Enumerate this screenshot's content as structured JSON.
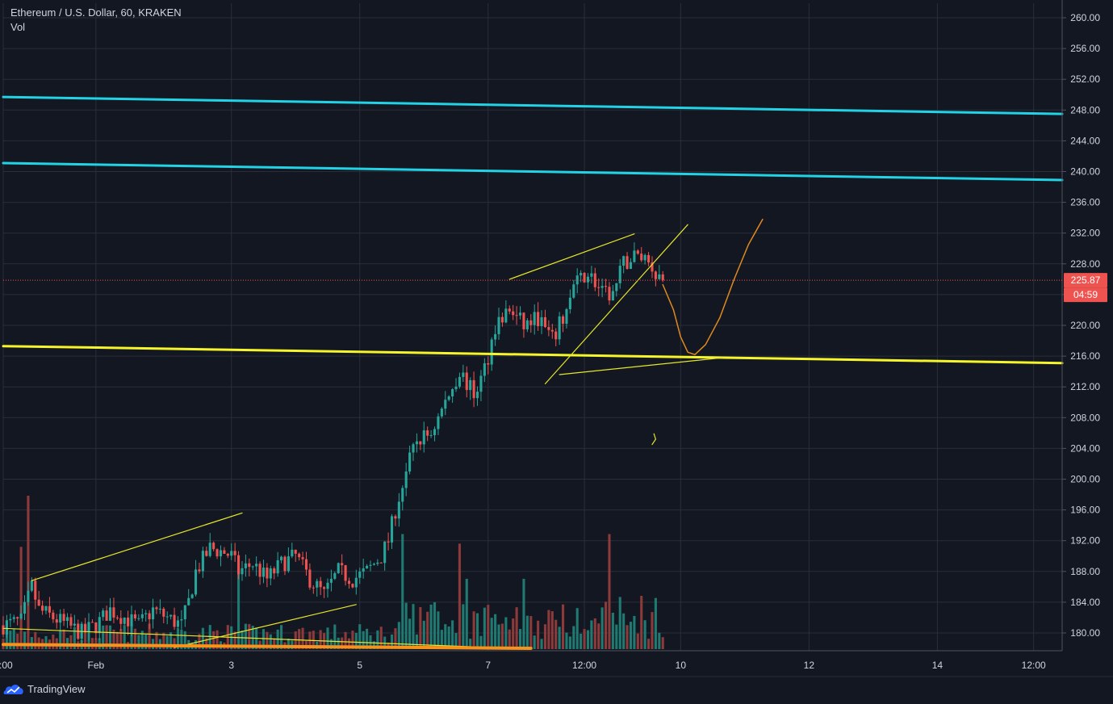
{
  "header": {
    "title": "Ethereum / U.S. Dollar, 60, KRAKEN",
    "indicator": "Vol"
  },
  "footer": {
    "brand": "TradingView"
  },
  "colors": {
    "background": "#131722",
    "grid": "#2a2e39",
    "up": "#26a69a",
    "down": "#ef5350",
    "up_volume": "#1f7a72",
    "down_volume": "#8c3a3a",
    "cyan_line": "#22d3e6",
    "yellow_line": "#f5f52a",
    "orange_line": "#f7931a",
    "price_label": "#ef5350"
  },
  "chart_data": {
    "type": "candlestick",
    "symbol": "Ethereum / U.S. Dollar",
    "interval": "60",
    "exchange": "KRAKEN",
    "ylim": [
      178,
      262
    ],
    "y_ticks": [
      "260.00",
      "256.00",
      "252.00",
      "248.00",
      "244.00",
      "240.00",
      "236.00",
      "232.00",
      "228.00",
      "224.00",
      "220.00",
      "216.00",
      "212.00",
      "208.00",
      "204.00",
      "200.00",
      "196.00",
      "192.00",
      "188.00",
      "184.00",
      "180.00"
    ],
    "x_ticks": [
      {
        "label": "2:00",
        "t": 0
      },
      {
        "label": "Feb",
        "t": 26
      },
      {
        "label": "3",
        "t": 64
      },
      {
        "label": "5",
        "t": 100
      },
      {
        "label": "7",
        "t": 136
      },
      {
        "label": "12:00",
        "t": 163
      },
      {
        "label": "10",
        "t": 190
      },
      {
        "label": "12",
        "t": 226
      },
      {
        "label": "14",
        "t": 262
      },
      {
        "label": "12:00",
        "t": 289
      }
    ],
    "last_price": "225.87",
    "last_price_value": 225.87,
    "countdown": "04:59",
    "t_max": 297,
    "price_path": [
      [
        0,
        181
      ],
      [
        5,
        181.5
      ],
      [
        8,
        186
      ],
      [
        10,
        183
      ],
      [
        14,
        182
      ],
      [
        18,
        181
      ],
      [
        22,
        180
      ],
      [
        26,
        181
      ],
      [
        30,
        183
      ],
      [
        34,
        182
      ],
      [
        38,
        181
      ],
      [
        42,
        183
      ],
      [
        46,
        182
      ],
      [
        50,
        181
      ],
      [
        52,
        184
      ],
      [
        54,
        188
      ],
      [
        58,
        191
      ],
      [
        62,
        190.5
      ],
      [
        64,
        190
      ],
      [
        66,
        188
      ],
      [
        70,
        189
      ],
      [
        74,
        187
      ],
      [
        78,
        189
      ],
      [
        82,
        190
      ],
      [
        86,
        187
      ],
      [
        90,
        185
      ],
      [
        94,
        188
      ],
      [
        98,
        187
      ],
      [
        102,
        188
      ],
      [
        106,
        190
      ],
      [
        108,
        192
      ],
      [
        110,
        196
      ],
      [
        113,
        201
      ],
      [
        116,
        205
      ],
      [
        120,
        206
      ],
      [
        124,
        210
      ],
      [
        128,
        214
      ],
      [
        132,
        211
      ],
      [
        134,
        213
      ],
      [
        136,
        216
      ],
      [
        138,
        220
      ],
      [
        142,
        222
      ],
      [
        146,
        220
      ],
      [
        150,
        221
      ],
      [
        154,
        218
      ],
      [
        158,
        222
      ],
      [
        160,
        225
      ],
      [
        164,
        227
      ],
      [
        168,
        224
      ],
      [
        171,
        224
      ],
      [
        174,
        228
      ],
      [
        177,
        229
      ],
      [
        180,
        229
      ],
      [
        183,
        227
      ],
      [
        185,
        225.87
      ]
    ],
    "volume_scale_max": 48,
    "volume_spikes": [
      {
        "t": 7,
        "v": 48,
        "dir": "down"
      },
      {
        "t": 5,
        "v": 32,
        "dir": "down"
      },
      {
        "t": 66,
        "v": 25,
        "dir": "up"
      },
      {
        "t": 112,
        "v": 36,
        "dir": "up"
      },
      {
        "t": 128,
        "v": 33,
        "dir": "down"
      },
      {
        "t": 130,
        "v": 22,
        "dir": "up"
      },
      {
        "t": 146,
        "v": 22,
        "dir": "up"
      },
      {
        "t": 170,
        "v": 36,
        "dir": "down"
      },
      {
        "t": 183,
        "v": 16,
        "dir": "up"
      }
    ],
    "drawings": [
      {
        "kind": "line",
        "color": "cyan",
        "points": [
          [
            0,
            249.7
          ],
          [
            297,
            247.5
          ]
        ]
      },
      {
        "kind": "line",
        "color": "cyan",
        "points": [
          [
            0,
            241.1
          ],
          [
            297,
            238.9
          ]
        ]
      },
      {
        "kind": "line",
        "color": "yellow_thick",
        "points": [
          [
            0,
            217.3
          ],
          [
            297,
            215.1
          ]
        ]
      },
      {
        "kind": "line",
        "color": "yellow_thin",
        "points": [
          [
            142,
            226.0
          ],
          [
            177,
            231.9
          ]
        ]
      },
      {
        "kind": "line",
        "color": "yellow_thin",
        "points": [
          [
            152,
            212.4
          ],
          [
            192,
            233.1
          ]
        ]
      },
      {
        "kind": "line",
        "color": "yellow_thin",
        "points": [
          [
            156,
            213.6
          ],
          [
            202,
            215.8
          ]
        ]
      },
      {
        "kind": "line",
        "color": "yellow_thin",
        "points": [
          [
            8,
            186.8
          ],
          [
            67,
            195.6
          ]
        ]
      },
      {
        "kind": "line",
        "color": "yellow_thin",
        "points": [
          [
            48,
            178.1
          ],
          [
            99,
            183.7
          ]
        ]
      },
      {
        "kind": "line",
        "color": "yellow_thin",
        "points": [
          [
            0,
            180.6
          ],
          [
            148,
            177.9
          ]
        ]
      },
      {
        "kind": "line",
        "color": "orange_thick",
        "points": [
          [
            0,
            178.5
          ],
          [
            148,
            178.0
          ]
        ]
      },
      {
        "kind": "curve",
        "color": "orange",
        "points": [
          [
            185,
            225.3
          ],
          [
            188,
            222
          ],
          [
            190,
            218.5
          ],
          [
            192,
            216.5
          ],
          [
            194,
            216.2
          ],
          [
            197,
            217.5
          ],
          [
            201,
            221
          ],
          [
            205,
            226
          ],
          [
            209,
            230.5
          ],
          [
            213,
            233.8
          ]
        ]
      },
      {
        "kind": "curve",
        "color": "yellow_thin",
        "points": [
          [
            182,
            204.5
          ],
          [
            183,
            205.2
          ],
          [
            182.5,
            205.9
          ]
        ]
      }
    ]
  }
}
